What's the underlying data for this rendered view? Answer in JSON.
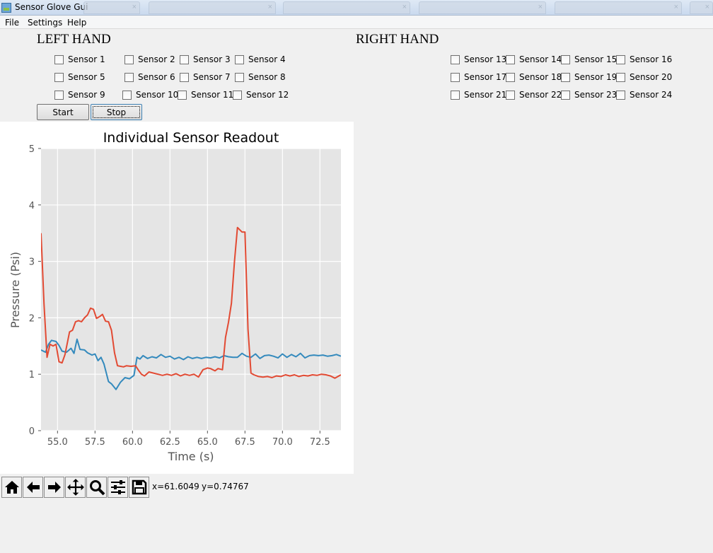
{
  "window": {
    "title": "Sensor Glove Gui"
  },
  "menu": [
    "File",
    "Settings",
    "Help"
  ],
  "left_hand": {
    "heading": "LEFT HAND",
    "sensors": [
      "Sensor 1",
      "Sensor 2",
      "Sensor 3",
      "Sensor 4",
      "Sensor 5",
      "Sensor 6",
      "Sensor 7",
      "Sensor 8",
      "Sensor 9",
      "Sensor 10",
      "Sensor 11",
      "Sensor 12"
    ],
    "start_label": "Start",
    "stop_label": "Stop"
  },
  "right_hand": {
    "heading": "RIGHT HAND",
    "sensors": [
      "Sensor 13",
      "Sensor 14",
      "Sensor 15",
      "Sensor 16",
      "Sensor 17",
      "Sensor 18",
      "Sensor 19",
      "Sensor 20",
      "Sensor 21",
      "Sensor 22",
      "Sensor 23",
      "Sensor 24"
    ]
  },
  "status": {
    "x_readout": "x=61.6049",
    "y_readout": "y=0.74767"
  },
  "toolbar_icons": [
    "home-icon",
    "back-arrow-icon",
    "forward-arrow-icon",
    "pan-move-icon",
    "zoom-magnifier-icon",
    "configure-subplots-icon",
    "save-floppy-icon"
  ],
  "chart_data": {
    "type": "line",
    "title": "Individual Sensor Readout",
    "xlabel": "Time (s)",
    "ylabel": "Pressure (Psi)",
    "xlim": [
      53.9,
      73.9
    ],
    "ylim": [
      0,
      5
    ],
    "xticks": [
      "55.0",
      "57.5",
      "60.0",
      "62.5",
      "65.0",
      "67.5",
      "70.0",
      "72.5"
    ],
    "yticks": [
      "0",
      "1",
      "2",
      "3",
      "4",
      "5"
    ],
    "grid": true,
    "background": "#e5e5e5",
    "series": [
      {
        "color": "#348abd",
        "x": [
          53.9,
          54.2,
          54.4,
          54.6,
          54.9,
          55.1,
          55.3,
          55.6,
          55.9,
          56.1,
          56.3,
          56.5,
          56.8,
          57.0,
          57.3,
          57.5,
          57.7,
          57.9,
          58.1,
          58.4,
          58.6,
          58.9,
          59.2,
          59.5,
          59.8,
          60.1,
          60.3,
          60.5,
          60.7,
          61.0,
          61.3,
          61.6,
          61.9,
          62.2,
          62.5,
          62.8,
          63.1,
          63.4,
          63.7,
          64.0,
          64.3,
          64.6,
          64.9,
          65.2,
          65.5,
          65.8,
          66.1,
          66.4,
          66.7,
          67.0,
          67.3,
          67.6,
          67.9,
          68.2,
          68.5,
          68.8,
          69.1,
          69.4,
          69.7,
          70.0,
          70.3,
          70.6,
          70.9,
          71.2,
          71.5,
          71.8,
          72.1,
          72.4,
          72.7,
          73.0,
          73.3,
          73.6,
          73.9
        ],
        "values": [
          1.43,
          1.39,
          1.53,
          1.6,
          1.58,
          1.51,
          1.41,
          1.39,
          1.46,
          1.37,
          1.62,
          1.44,
          1.43,
          1.38,
          1.34,
          1.36,
          1.24,
          1.3,
          1.18,
          0.87,
          0.83,
          0.73,
          0.86,
          0.94,
          0.92,
          0.98,
          1.3,
          1.27,
          1.33,
          1.28,
          1.31,
          1.29,
          1.35,
          1.3,
          1.32,
          1.27,
          1.3,
          1.26,
          1.31,
          1.28,
          1.3,
          1.28,
          1.3,
          1.29,
          1.31,
          1.29,
          1.33,
          1.31,
          1.3,
          1.3,
          1.37,
          1.32,
          1.3,
          1.36,
          1.28,
          1.33,
          1.34,
          1.32,
          1.29,
          1.36,
          1.3,
          1.35,
          1.31,
          1.37,
          1.29,
          1.33,
          1.34,
          1.33,
          1.34,
          1.32,
          1.33,
          1.35,
          1.32
        ]
      },
      {
        "color": "#e24a33",
        "x": [
          53.9,
          54.1,
          54.3,
          54.5,
          54.7,
          54.9,
          55.1,
          55.3,
          55.5,
          55.8,
          56.0,
          56.2,
          56.4,
          56.6,
          56.8,
          57.0,
          57.2,
          57.4,
          57.6,
          57.8,
          58.0,
          58.2,
          58.4,
          58.6,
          58.8,
          59.0,
          59.2,
          59.4,
          59.6,
          59.9,
          60.2,
          60.4,
          60.6,
          60.8,
          61.1,
          61.4,
          61.7,
          62.0,
          62.3,
          62.6,
          62.9,
          63.2,
          63.5,
          63.8,
          64.1,
          64.4,
          64.7,
          65.0,
          65.2,
          65.5,
          65.7,
          66.0,
          66.2,
          66.4,
          66.6,
          66.8,
          67.0,
          67.3,
          67.5,
          67.7,
          67.9,
          68.1,
          68.4,
          68.7,
          69.0,
          69.3,
          69.6,
          69.9,
          70.2,
          70.5,
          70.8,
          71.1,
          71.4,
          71.7,
          72.0,
          72.3,
          72.6,
          72.9,
          73.2,
          73.5,
          73.9
        ],
        "values": [
          3.5,
          2.25,
          1.3,
          1.53,
          1.5,
          1.53,
          1.22,
          1.2,
          1.35,
          1.75,
          1.78,
          1.93,
          1.95,
          1.93,
          2.0,
          2.05,
          2.17,
          2.15,
          1.99,
          2.02,
          2.06,
          1.94,
          1.93,
          1.78,
          1.38,
          1.15,
          1.14,
          1.13,
          1.15,
          1.14,
          1.15,
          1.07,
          1.0,
          0.97,
          1.04,
          1.02,
          1.0,
          0.98,
          1.0,
          0.98,
          1.01,
          0.97,
          1.0,
          0.98,
          1.0,
          0.95,
          1.08,
          1.11,
          1.1,
          1.06,
          1.1,
          1.08,
          1.65,
          1.92,
          2.26,
          3.0,
          3.6,
          3.52,
          3.52,
          1.8,
          1.02,
          0.99,
          0.96,
          0.95,
          0.96,
          0.94,
          0.97,
          0.96,
          0.99,
          0.97,
          0.99,
          0.96,
          0.98,
          0.97,
          0.99,
          0.98,
          1.0,
          0.99,
          0.97,
          0.93,
          0.99
        ]
      }
    ]
  }
}
